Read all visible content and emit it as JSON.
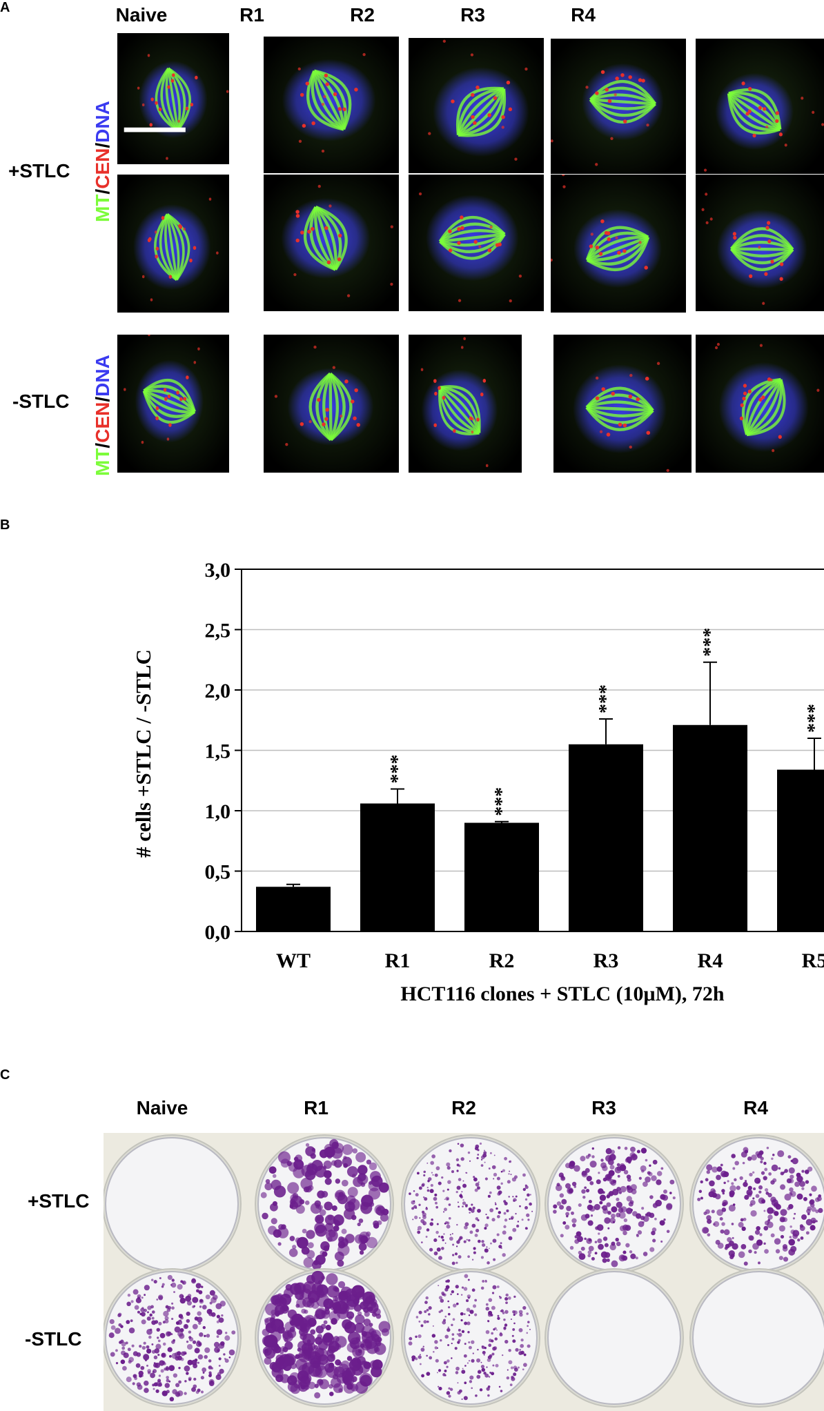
{
  "panels": {
    "a": {
      "letter": "A",
      "columns": [
        "Naive",
        "R1",
        "R2",
        "R3",
        "R4"
      ],
      "rows": [
        {
          "label": "+STLC",
          "n_images": 2
        },
        {
          "label": "-STLC",
          "n_images": 1
        }
      ],
      "legend": {
        "mt": "MT",
        "slash1": "/",
        "cen": "CEN",
        "slash2": "/",
        "dna": "DNA"
      },
      "colors": {
        "mt": "#7CFC3A",
        "cen": "#E8302A",
        "dna": "#3A3AF0"
      }
    },
    "b": {
      "letter": "B"
    },
    "c": {
      "letter": "C",
      "columns": [
        "Naive",
        "R1",
        "R2",
        "R3",
        "R4"
      ],
      "rows": [
        "+STLC",
        "-STLC"
      ],
      "stain_color": "#6B1E8C",
      "wells": [
        [
          "empty",
          "large-dense",
          "sparse-small",
          "medium",
          "medium"
        ],
        [
          "medium-dense",
          "large-very-dense",
          "sparse-small",
          "empty",
          "empty"
        ]
      ]
    }
  },
  "chart_data": {
    "type": "bar",
    "categories": [
      "WT",
      "R1",
      "R2",
      "R3",
      "R4",
      "R5"
    ],
    "values": [
      0.37,
      1.06,
      0.9,
      1.55,
      1.71,
      1.34
    ],
    "errors": [
      0.02,
      0.12,
      0.01,
      0.21,
      0.52,
      0.26
    ],
    "significance": [
      "",
      "***",
      "***",
      "***",
      "***",
      "***"
    ],
    "ylabel": "# cells +STLC / -STLC",
    "xlabel": "HCT116 clones + STLC (10μM), 72h",
    "ylim": [
      0,
      3.0
    ],
    "yticks": [
      "0,0",
      "0,5",
      "1,0",
      "1,5",
      "2,0",
      "2,5",
      "3,0"
    ],
    "bar_color": "#000000",
    "grid": true
  }
}
